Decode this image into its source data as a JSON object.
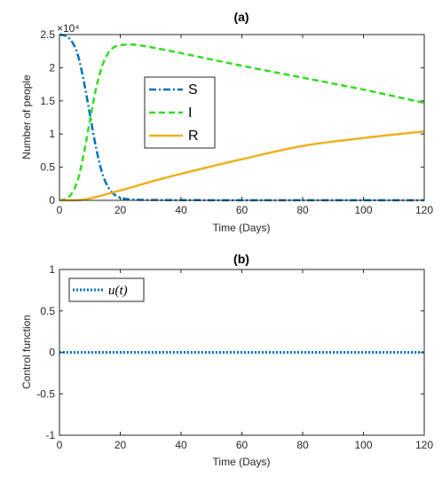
{
  "chart_data": [
    {
      "type": "line",
      "title": "(a)",
      "xlabel": "Time (Days)",
      "ylabel": "Number of people",
      "exponent_label": "×10⁴",
      "xlim": [
        0,
        120
      ],
      "ylim": [
        0,
        2.5
      ],
      "xticks": [
        "0",
        "20",
        "40",
        "60",
        "80",
        "100",
        "120"
      ],
      "yticks": [
        "0",
        "0.5",
        "1",
        "1.5",
        "2",
        "2.5"
      ],
      "legend_position": "center-left",
      "grid": false,
      "series": [
        {
          "name": "S",
          "color": "#0072BD",
          "style": "dash-dot",
          "x": [
            0,
            2,
            4,
            6,
            8,
            10,
            12,
            14,
            16,
            18,
            20,
            22,
            24,
            26,
            30,
            40,
            60,
            80,
            100,
            120
          ],
          "y": [
            2.5,
            2.48,
            2.4,
            2.2,
            1.8,
            1.3,
            0.8,
            0.42,
            0.2,
            0.09,
            0.04,
            0.02,
            0.012,
            0.008,
            0.005,
            0.003,
            0.002,
            0.002,
            0.002,
            0.002
          ]
        },
        {
          "name": "I",
          "color": "#33DD22",
          "style": "dashed",
          "x": [
            0,
            2,
            4,
            6,
            8,
            10,
            12,
            14,
            16,
            18,
            20,
            22,
            24,
            26,
            30,
            40,
            60,
            80,
            100,
            120
          ],
          "y": [
            0.0,
            0.02,
            0.1,
            0.3,
            0.7,
            1.2,
            1.68,
            2.02,
            2.22,
            2.31,
            2.34,
            2.35,
            2.35,
            2.34,
            2.31,
            2.22,
            2.03,
            1.85,
            1.67,
            1.47
          ]
        },
        {
          "name": "R",
          "color": "#EDB120",
          "style": "solid",
          "x": [
            0,
            4,
            8,
            12,
            16,
            20,
            24,
            30,
            40,
            60,
            80,
            100,
            120
          ],
          "y": [
            0.0,
            0.0,
            0.01,
            0.05,
            0.1,
            0.15,
            0.2,
            0.28,
            0.4,
            0.62,
            0.82,
            0.94,
            1.04
          ]
        }
      ]
    },
    {
      "type": "line",
      "title": "(b)",
      "xlabel": "Time (Days)",
      "ylabel": "Control function",
      "xlim": [
        0,
        120
      ],
      "ylim": [
        -1,
        1
      ],
      "xticks": [
        "0",
        "20",
        "40",
        "60",
        "80",
        "100",
        "120"
      ],
      "yticks": [
        "-1",
        "-0.5",
        "0",
        "0.5",
        "1"
      ],
      "legend_position": "top-left",
      "grid": false,
      "series": [
        {
          "name": "u(t)",
          "color": "#0072BD",
          "style": "dotted",
          "x": [
            0,
            120
          ],
          "y": [
            0,
            0
          ]
        }
      ]
    }
  ]
}
